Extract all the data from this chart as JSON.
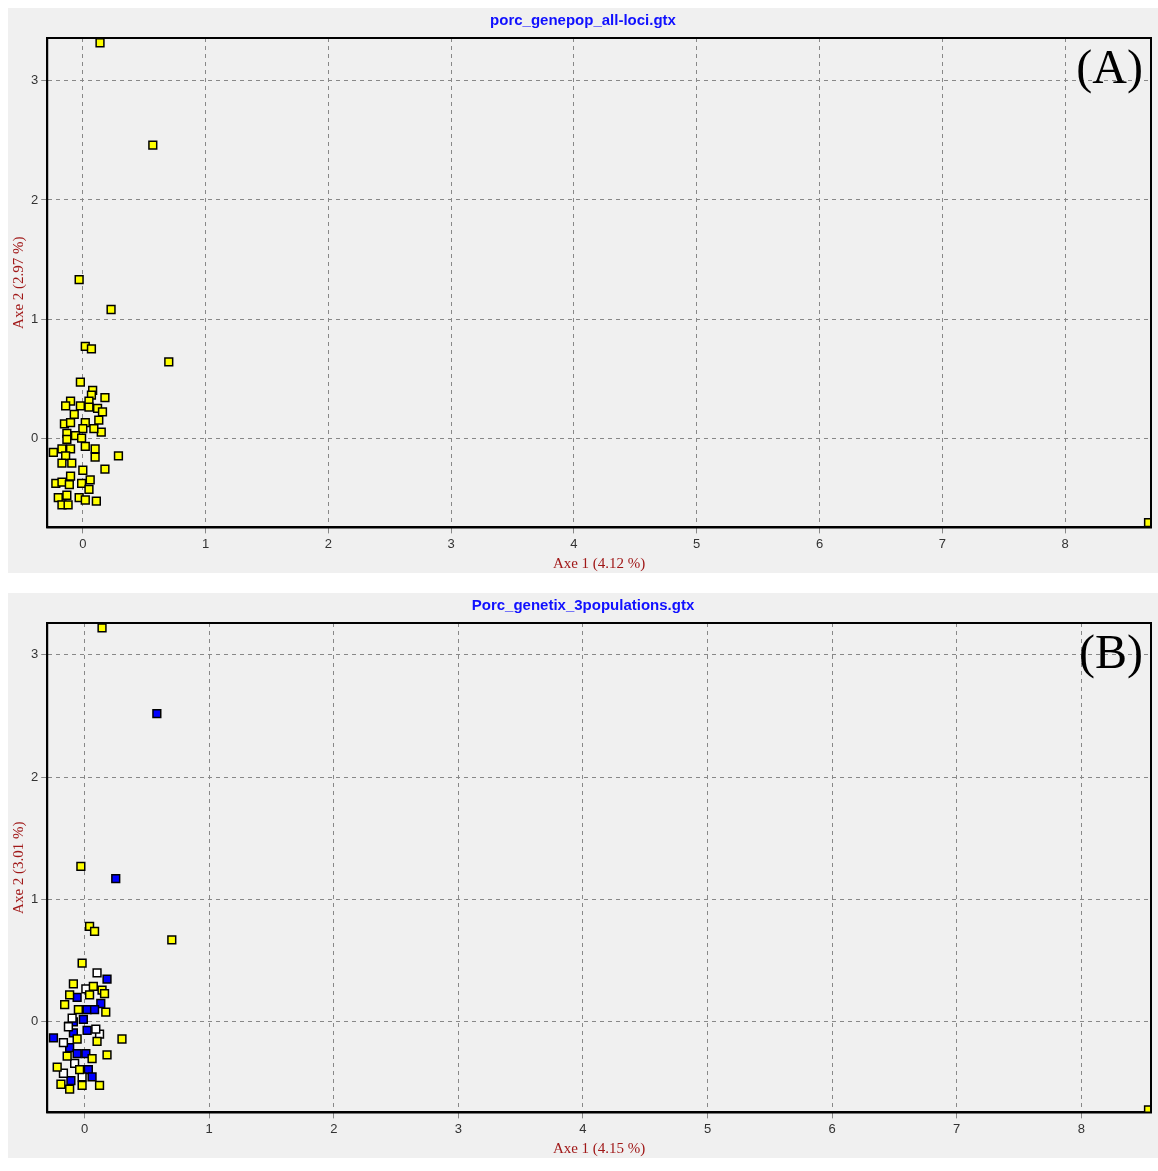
{
  "chart_data": [
    {
      "type": "scatter",
      "title": "porc_genepop_all-loci.gtx",
      "xlabel": "Axe 1 (4.12 %)",
      "ylabel": "Axe 2 (2.97 %)",
      "annotations": [
        "(A)"
      ],
      "xlim": [
        -0.29,
        8.7
      ],
      "ylim": [
        -0.75,
        3.36
      ],
      "xticks": [
        0,
        1,
        2,
        3,
        4,
        5,
        6,
        7,
        8
      ],
      "yticks": [
        0,
        1,
        2,
        3
      ],
      "grid": true,
      "marker": "square",
      "series": [
        {
          "color": "#ffff00",
          "x": [
            0.14,
            0.57,
            -0.03,
            0.23,
            0.02,
            0.07,
            0.7,
            0.29,
            0.11,
            8.68,
            -0.02,
            0.08,
            0.07,
            0.18,
            -0.1,
            -0.14,
            0.05,
            0.05,
            0.12,
            -0.02,
            0.16,
            -0.07,
            -0.15,
            -0.1,
            0.02,
            0.13,
            0,
            0.15,
            0.09,
            -0.13,
            -0.06,
            -0.01,
            -0.13,
            -0.17,
            -0.1,
            0.02,
            0.1,
            -0.24,
            -0.14,
            0.1,
            -0.09,
            -0.17,
            0,
            0.18,
            -0.1,
            0.06,
            -0.22,
            -0.17,
            -0.01,
            -0.11,
            0.05,
            -0.2,
            -0.13,
            -0.03,
            0.02,
            -0.17,
            -0.12
          ],
          "values": [
            3.32,
            2.46,
            1.33,
            1.08,
            0.77,
            0.75,
            0.64,
            -0.15,
            -0.53,
            -0.71,
            0.47,
            0.4,
            0.36,
            0.34,
            0.31,
            0.27,
            0.31,
            0.26,
            0.25,
            0.27,
            0.22,
            0.2,
            0.12,
            0.13,
            0.13,
            0.15,
            0.08,
            0.05,
            0.08,
            0.04,
            0.02,
            0.0,
            -0.01,
            -0.09,
            -0.09,
            -0.07,
            -0.09,
            -0.12,
            -0.15,
            -0.16,
            -0.21,
            -0.21,
            -0.27,
            -0.26,
            -0.32,
            -0.35,
            -0.38,
            -0.37,
            -0.38,
            -0.39,
            -0.43,
            -0.5,
            -0.48,
            -0.5,
            -0.52,
            -0.56,
            -0.56
          ]
        }
      ]
    },
    {
      "type": "scatter",
      "title": "Porc_genetix_3populations.gtx",
      "xlabel": "Axe 1 (4.15 %)",
      "ylabel": "Axe 2 (3.01 %)",
      "annotations": [
        "(B)"
      ],
      "xlim": [
        -0.3,
        8.56
      ],
      "ylim": [
        -0.74,
        3.26
      ],
      "xticks": [
        0,
        1,
        2,
        3,
        4,
        5,
        6,
        7,
        8
      ],
      "yticks": [
        0,
        1,
        2,
        3
      ],
      "grid": true,
      "marker": "square",
      "series": [
        {
          "color": "#ffff00",
          "x": [
            0.14,
            -0.03,
            0.04,
            0.08,
            0.7,
            0.3,
            8.54,
            -0.02,
            -0.09,
            0.07,
            0.14,
            0.16,
            0.04,
            -0.12,
            -0.16,
            -0.05,
            0.17,
            0.1,
            0.18,
            0.06,
            -0.14,
            -0.22,
            -0.04,
            -0.19,
            0.12,
            -0.02,
            -0.12,
            -0.06
          ],
          "values": [
            3.22,
            1.27,
            0.78,
            0.74,
            0.67,
            -0.14,
            -0.72,
            0.48,
            0.31,
            0.29,
            0.26,
            0.23,
            0.22,
            0.22,
            0.14,
            0.1,
            0.08,
            -0.16,
            -0.27,
            -0.3,
            -0.28,
            -0.37,
            -0.39,
            -0.51,
            -0.52,
            -0.52,
            -0.55,
            -0.14
          ]
        },
        {
          "color": "#ffffff",
          "x": [
            0.1,
            0.01,
            -0.1,
            -0.13,
            0.12,
            0.09,
            -0.17,
            -0.08,
            -0.17,
            -0.02
          ],
          "values": [
            0.4,
            0.27,
            0.03,
            -0.04,
            -0.1,
            -0.06,
            -0.17,
            -0.34,
            -0.42,
            -0.45
          ]
        },
        {
          "color": "#0000ff",
          "x": [
            0.58,
            0.25,
            -0.25,
            0.18,
            -0.06,
            0.13,
            0.02,
            0.08,
            -0.01,
            0.02,
            -0.09,
            -0.12,
            -0.06,
            0.01,
            0.03,
            0.06,
            -0.11,
            -0.09
          ],
          "values": [
            2.52,
            1.17,
            -0.13,
            0.35,
            0.2,
            0.15,
            0.1,
            0.1,
            0.02,
            -0.07,
            -0.09,
            -0.21,
            -0.26,
            -0.26,
            -0.39,
            -0.45,
            -0.48,
            0.0
          ]
        }
      ]
    }
  ]
}
